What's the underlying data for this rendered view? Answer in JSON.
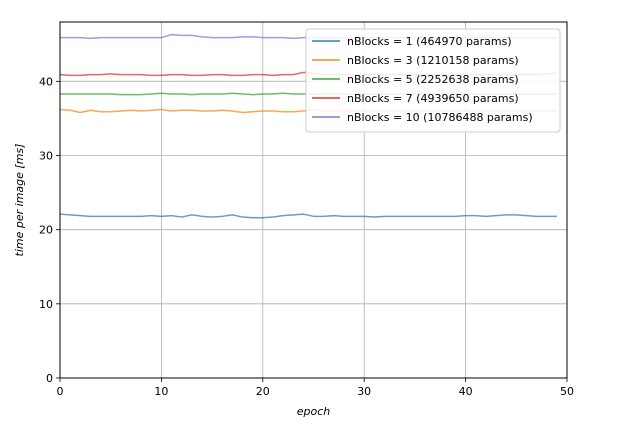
{
  "chart_data": {
    "type": "line",
    "xlabel": "epoch",
    "ylabel": "time per image [ms]",
    "xlim": [
      0,
      50
    ],
    "ylim": [
      0,
      48
    ],
    "xticks": [
      0,
      10,
      20,
      30,
      40,
      50
    ],
    "yticks": [
      0,
      10,
      20,
      30,
      40
    ],
    "grid": true,
    "legend_position": "top-right",
    "x": [
      0,
      1,
      2,
      3,
      4,
      5,
      6,
      7,
      8,
      9,
      10,
      11,
      12,
      13,
      14,
      15,
      16,
      17,
      18,
      19,
      20,
      21,
      22,
      23,
      24,
      25,
      26,
      27,
      28,
      29,
      30,
      31,
      32,
      33,
      34,
      35,
      36,
      37,
      38,
      39,
      40,
      41,
      42,
      43,
      44,
      45,
      46,
      47,
      48,
      49
    ],
    "series": [
      {
        "name": "nBlocks = 1 (464970 params)",
        "color": "#1f77b4",
        "values": [
          22.1,
          22.0,
          21.9,
          21.8,
          21.8,
          21.8,
          21.8,
          21.8,
          21.8,
          21.9,
          21.8,
          21.9,
          21.7,
          22.0,
          21.8,
          21.7,
          21.8,
          22.0,
          21.7,
          21.6,
          21.6,
          21.7,
          21.9,
          22.0,
          22.1,
          21.8,
          21.8,
          21.9,
          21.8,
          21.8,
          21.8,
          21.7,
          21.8,
          21.8,
          21.8,
          21.8,
          21.8,
          21.8,
          21.8,
          21.8,
          21.9,
          21.9,
          21.8,
          21.9,
          22.0,
          22.0,
          21.9,
          21.8,
          21.8,
          21.8
        ]
      },
      {
        "name": "nBlocks = 3 (1210158 params)",
        "color": "#ff7f0e",
        "values": [
          36.2,
          36.1,
          35.8,
          36.1,
          35.9,
          35.9,
          36.0,
          36.1,
          36.0,
          36.1,
          36.2,
          36.0,
          36.1,
          36.1,
          36.0,
          36.0,
          36.1,
          36.0,
          35.8,
          35.9,
          36.0,
          36.0,
          35.9,
          35.9,
          36.0,
          36.2,
          36.0,
          36.0,
          36.0,
          36.0,
          36.0,
          36.0,
          36.0,
          36.0,
          36.0,
          36.0,
          36.0,
          36.0,
          36.0,
          36.0,
          36.0,
          36.0,
          36.0,
          36.0,
          36.0,
          36.0,
          36.0,
          36.0,
          36.0,
          36.0
        ]
      },
      {
        "name": "nBlocks = 5 (2252638 params)",
        "color": "#2ca02c",
        "values": [
          38.3,
          38.3,
          38.3,
          38.3,
          38.3,
          38.3,
          38.2,
          38.2,
          38.2,
          38.3,
          38.4,
          38.3,
          38.3,
          38.2,
          38.3,
          38.3,
          38.3,
          38.4,
          38.3,
          38.2,
          38.3,
          38.3,
          38.4,
          38.3,
          38.3,
          38.3,
          38.3,
          38.3,
          38.3,
          38.3,
          38.3,
          38.3,
          38.3,
          38.3,
          38.3,
          38.3,
          38.3,
          38.3,
          38.3,
          38.3,
          38.3,
          38.3,
          38.3,
          38.3,
          38.3,
          38.3,
          38.3,
          38.3,
          38.3,
          38.3
        ]
      },
      {
        "name": "nBlocks = 7 (4939650 params)",
        "color": "#d62728",
        "values": [
          40.9,
          40.8,
          40.8,
          40.9,
          40.9,
          41.0,
          40.9,
          40.9,
          40.9,
          40.8,
          40.8,
          40.9,
          40.9,
          40.8,
          40.8,
          40.9,
          40.9,
          40.8,
          40.8,
          40.9,
          40.9,
          40.8,
          40.9,
          40.9,
          41.2,
          41.1,
          40.9,
          40.9,
          40.9,
          40.9,
          40.9,
          40.9,
          40.9,
          40.9,
          40.9,
          40.9,
          40.9,
          40.9,
          40.9,
          40.9,
          40.9,
          40.9,
          40.9,
          40.9,
          40.9,
          40.9,
          40.9,
          40.9,
          41.0,
          41.1
        ]
      },
      {
        "name": "nBlocks = 10 (10786488 params)",
        "color": "#9467bd",
        "values": [
          45.9,
          45.9,
          45.9,
          45.8,
          45.9,
          45.9,
          45.9,
          45.9,
          45.9,
          45.9,
          45.9,
          46.3,
          46.2,
          46.2,
          46.0,
          45.9,
          45.9,
          45.9,
          46.0,
          46.0,
          45.9,
          45.9,
          45.9,
          45.8,
          45.9,
          45.9,
          45.9,
          45.9,
          45.9,
          45.9,
          45.9,
          45.9,
          45.9,
          45.9,
          45.9,
          45.9,
          45.9,
          45.9,
          45.9,
          45.9,
          45.9,
          45.9,
          45.9,
          45.9,
          45.9,
          45.9,
          45.9,
          45.9,
          45.9,
          45.9
        ]
      }
    ]
  }
}
